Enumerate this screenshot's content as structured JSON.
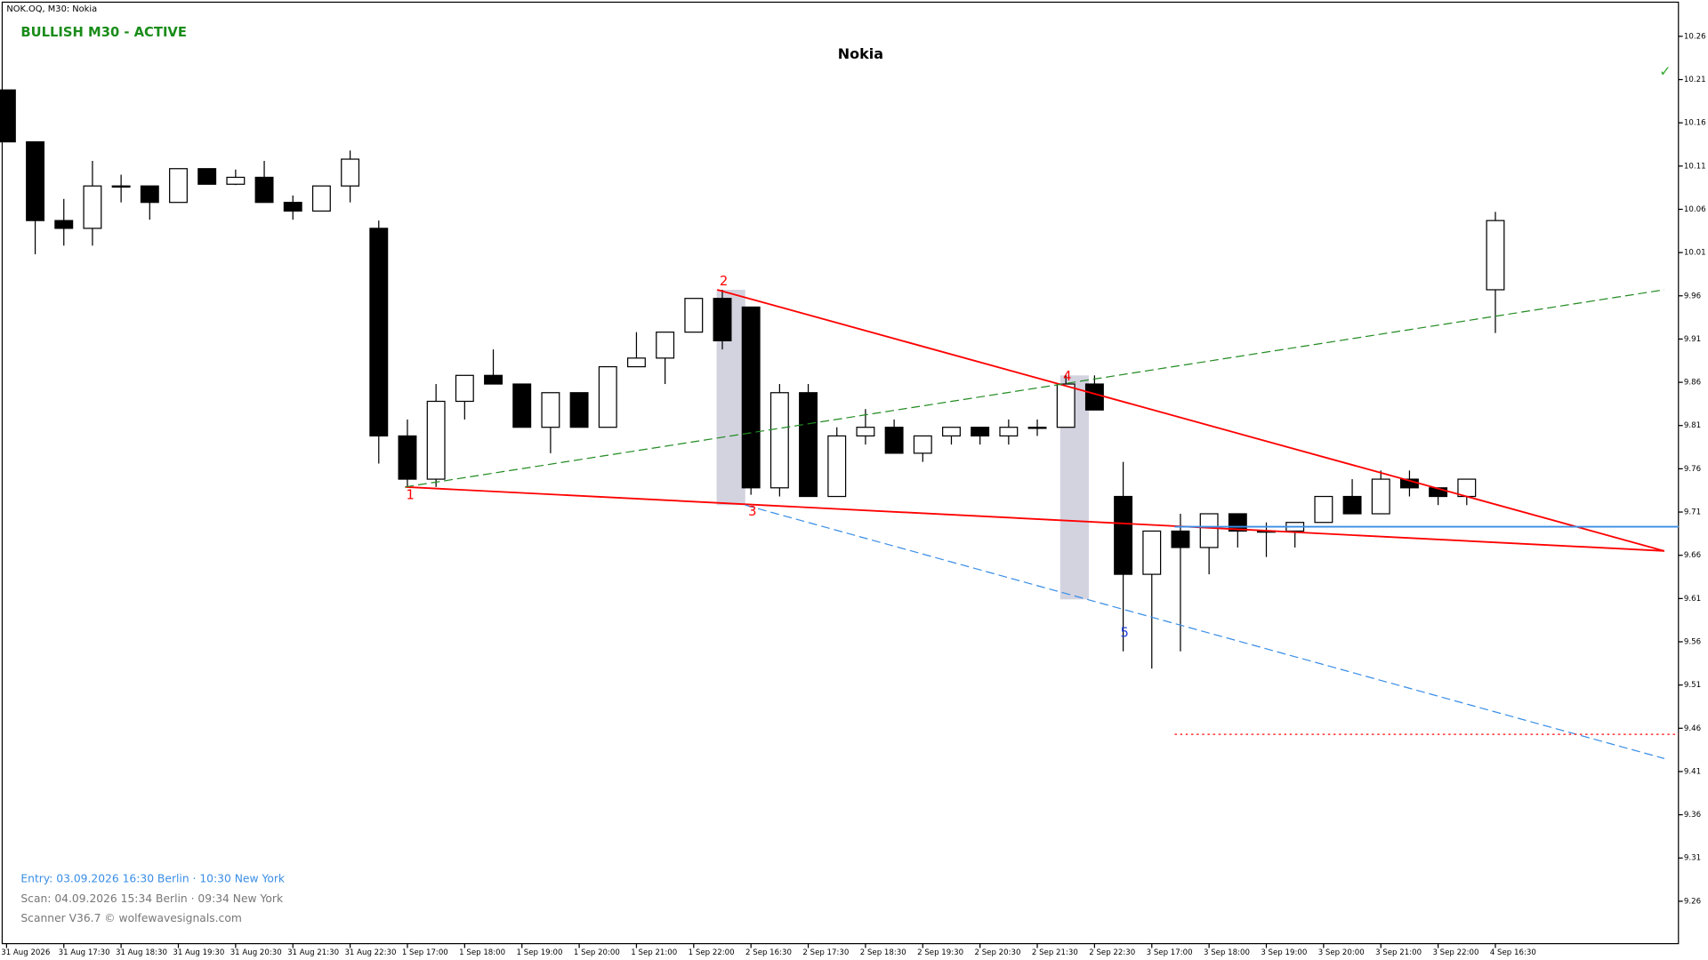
{
  "chart_data": {
    "type": "candlestick",
    "symbol": "NOK.OQ, M30:  Nokia",
    "status": "BULLISH M30 - ACTIVE",
    "title": "Nokia",
    "entry": "Entry: 03.09.2026  16:30 Berlin · 10:30 New York",
    "scan": "Scan:  04.09.2026  15:34 Berlin · 09:34 New York",
    "scanner": "Scanner V36.7  © wolfewavesignals.com",
    "check": "✓",
    "ylim": [
      9.211,
      10.302
    ],
    "yticks": [
      10.26,
      10.21,
      10.16,
      10.11,
      10.06,
      10.01,
      9.96,
      9.91,
      9.86,
      9.81,
      9.76,
      9.71,
      9.66,
      9.61,
      9.56,
      9.51,
      9.46,
      9.41,
      9.36,
      9.31,
      9.26
    ],
    "xlabels": [
      "31 Aug 2026",
      "31 Aug 17:30",
      "31 Aug 18:30",
      "31 Aug 19:30",
      "31 Aug 20:30",
      "31 Aug 21:30",
      "31 Aug 22:30",
      "1 Sep 17:00",
      "1 Sep 18:00",
      "1 Sep 19:00",
      "1 Sep 20:00",
      "1 Sep 21:00",
      "1 Sep 22:00",
      "2 Sep 16:30",
      "2 Sep 17:30",
      "2 Sep 18:30",
      "2 Sep 19:30",
      "2 Sep 20:30",
      "2 Sep 21:30",
      "2 Sep 22:30",
      "3 Sep 17:00",
      "3 Sep 18:00",
      "3 Sep 19:00",
      "3 Sep 20:00",
      "3 Sep 21:00",
      "3 Sep 22:00",
      "4 Sep 16:30"
    ],
    "open": [
      10.198,
      10.138,
      10.047,
      10.038,
      10.087,
      10.087,
      10.068,
      10.107,
      10.089,
      10.097,
      10.068,
      10.058,
      10.087,
      10.038,
      9.798,
      9.748,
      9.838,
      9.868,
      9.858,
      9.808,
      9.848,
      9.808,
      9.878,
      9.888,
      9.918,
      9.957,
      9.947,
      9.738,
      9.848,
      9.728,
      9.798,
      9.808,
      9.778,
      9.798,
      9.808,
      9.798,
      9.808,
      9.808,
      9.858,
      9.728,
      9.638,
      9.688,
      9.669,
      9.708,
      9.688,
      9.688,
      9.698,
      9.728,
      9.708,
      9.748,
      9.738,
      9.728,
      9.967
    ],
    "high": [
      10.198,
      10.138,
      10.072,
      10.116,
      10.1,
      10.087,
      10.107,
      10.107,
      10.106,
      10.116,
      10.076,
      10.087,
      10.128,
      10.047,
      9.817,
      9.858,
      9.868,
      9.898,
      9.858,
      9.848,
      9.848,
      9.878,
      9.918,
      9.918,
      9.957,
      9.967,
      9.947,
      9.858,
      9.858,
      9.808,
      9.829,
      9.817,
      9.798,
      9.808,
      9.808,
      9.817,
      9.817,
      9.868,
      9.868,
      9.768,
      9.688,
      9.708,
      9.708,
      9.708,
      9.698,
      9.698,
      9.728,
      9.748,
      9.758,
      9.758,
      9.738,
      9.748,
      10.057
    ],
    "low": [
      10.138,
      10.008,
      10.018,
      10.018,
      10.068,
      10.048,
      10.068,
      10.089,
      10.088,
      10.068,
      10.048,
      10.058,
      10.068,
      9.766,
      9.739,
      9.739,
      9.817,
      9.858,
      9.808,
      9.778,
      9.808,
      9.808,
      9.878,
      9.858,
      9.918,
      9.898,
      9.73,
      9.728,
      9.728,
      9.728,
      9.788,
      9.778,
      9.768,
      9.788,
      9.788,
      9.788,
      9.798,
      9.808,
      9.828,
      9.549,
      9.529,
      9.549,
      9.638,
      9.669,
      9.658,
      9.669,
      9.698,
      9.708,
      9.708,
      9.728,
      9.718,
      9.718,
      9.917
    ],
    "close": [
      10.138,
      10.047,
      10.038,
      10.087,
      10.087,
      10.068,
      10.107,
      10.089,
      10.097,
      10.068,
      10.058,
      10.087,
      10.118,
      9.798,
      9.748,
      9.838,
      9.868,
      9.858,
      9.808,
      9.848,
      9.808,
      9.878,
      9.888,
      9.918,
      9.957,
      9.908,
      9.738,
      9.848,
      9.728,
      9.798,
      9.808,
      9.778,
      9.798,
      9.808,
      9.798,
      9.808,
      9.808,
      9.858,
      9.828,
      9.638,
      9.688,
      9.669,
      9.708,
      9.688,
      9.688,
      9.698,
      9.728,
      9.708,
      9.748,
      9.738,
      9.728,
      9.748,
      10.047
    ],
    "shades": [
      {
        "x": [
          24.8,
          25.8
        ],
        "y": [
          9.967,
          9.718
        ]
      },
      {
        "x": [
          36.8,
          37.8
        ],
        "y": [
          9.868,
          9.609
        ]
      }
    ],
    "lines": [
      {
        "color": "#ff0000",
        "dash": "none",
        "x": [
          13.92,
          57.9
        ],
        "y": [
          9.739,
          9.665
        ]
      },
      {
        "color": "#ff0000",
        "dash": "none",
        "x": [
          24.82,
          57.9
        ],
        "y": [
          9.967,
          9.665
        ]
      },
      {
        "color": "#228b22",
        "dash": "8 4",
        "x": [
          13.92,
          57.9
        ],
        "y": [
          9.739,
          9.967
        ]
      },
      {
        "color": "#3a8ee6",
        "dash": "8 4",
        "x": [
          25.8,
          57.9
        ],
        "y": [
          9.718,
          9.425
        ]
      },
      {
        "color": "#3a8ee6",
        "dash": "none",
        "x": [
          40.8,
          58.4
        ],
        "y": [
          9.693,
          9.693
        ]
      },
      {
        "color": "#ff0000",
        "dash": "2 3",
        "x": [
          40.8,
          58.4
        ],
        "y": [
          9.453,
          9.453
        ]
      }
    ],
    "points": [
      {
        "label": "1",
        "color": "#ff0000",
        "x": 14.1,
        "y": 9.729
      },
      {
        "label": "2",
        "color": "#ff0000",
        "x": 25.05,
        "y": 9.976
      },
      {
        "label": "3",
        "color": "#ff0000",
        "x": 26.05,
        "y": 9.71
      },
      {
        "label": "4",
        "color": "#ff0000",
        "x": 37.05,
        "y": 9.866
      },
      {
        "label": "5",
        "color": "#1f3fdc",
        "x": 39.05,
        "y": 9.57
      }
    ]
  }
}
